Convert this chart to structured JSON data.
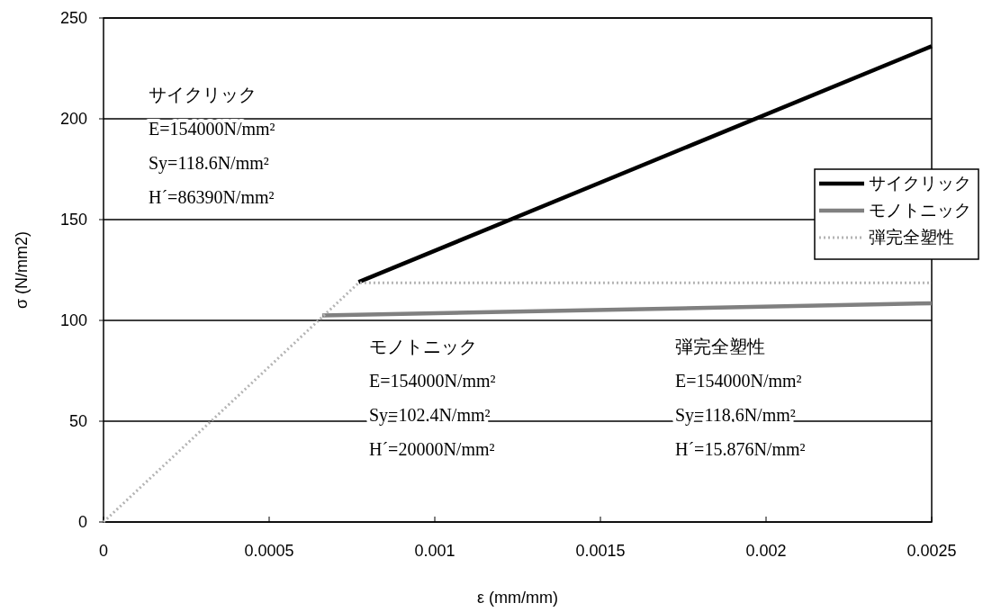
{
  "chart_data": {
    "type": "line",
    "xlabel": "ε (mm/mm)",
    "ylabel": "σ (N/mm2)",
    "xlim": [
      0,
      0.0025
    ],
    "ylim": [
      0,
      250
    ],
    "xticks": [
      0,
      0.0005,
      0.001,
      0.0015,
      0.002,
      0.0025
    ],
    "yticks": [
      0,
      50,
      100,
      150,
      200,
      250
    ],
    "grid": "y",
    "legend": "right",
    "series": [
      {
        "name": "サイクリック",
        "color": "#000000",
        "line_style": "solid",
        "x": [
          0.00077,
          0.0025
        ],
        "values": [
          119,
          236
        ]
      },
      {
        "name": "モノトニック",
        "color": "#808080",
        "line_style": "solid",
        "x": [
          0.00066,
          0.0025
        ],
        "values": [
          102.4,
          108.5
        ]
      },
      {
        "name": "弾完全塑性",
        "color": "#b4b4b4",
        "line_style": "dotted",
        "x": [
          0,
          0.00077,
          0.0025
        ],
        "values": [
          0,
          118.6,
          118.6
        ]
      }
    ],
    "annotations": [
      "サイクリック",
      "E=154000N/mm²",
      "Sy=118.6N/mm²",
      "H´=86390N/mm²",
      "モノトニック",
      "E=154000N/mm²",
      "Sy=102.4N/mm²",
      "H´=20000N/mm²",
      "弾完全塑性",
      "E=154000N/mm²",
      "Sy=118.6N/mm²",
      "H´=15.876N/mm²"
    ]
  }
}
